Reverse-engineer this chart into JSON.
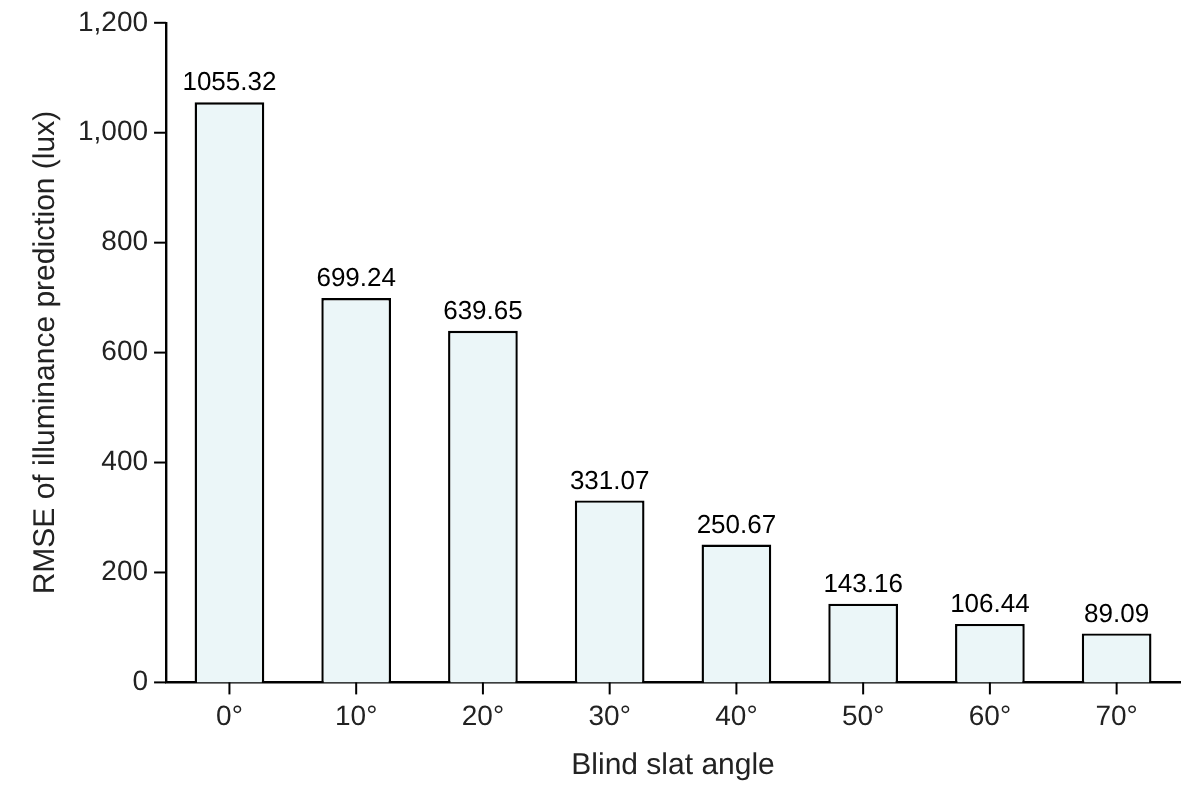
{
  "chart_data": {
    "type": "bar",
    "xlabel": "Blind slat angle",
    "ylabel": "RMSE of illuminance prediction (lux)",
    "categories": [
      "0°",
      "10°",
      "20°",
      "30°",
      "40°",
      "50°",
      "60°",
      "70°"
    ],
    "values": [
      1055.32,
      699.24,
      639.65,
      331.07,
      250.67,
      143.16,
      106.44,
      89.09
    ],
    "color": "#ebf6f8",
    "ylim": [
      0,
      1200
    ],
    "yticks": [
      0,
      {
        "value": 200,
        "label": "200"
      },
      {
        "value": 400,
        "label": "400"
      },
      {
        "value": 600,
        "label": "600"
      },
      {
        "value": 800,
        "label": "800"
      },
      {
        "value": 1000,
        "label": "1,000"
      },
      {
        "value": 1200,
        "label": "1,200"
      }
    ],
    "data_labels": true,
    "grid": false,
    "legend": false
  }
}
